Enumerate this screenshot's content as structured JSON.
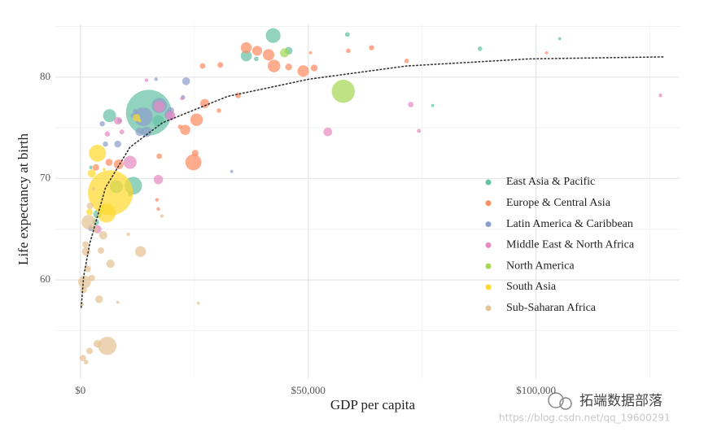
{
  "chart_data": {
    "type": "scatter",
    "x_label": "GDP per capita",
    "y_label": "Life expectancy at birth",
    "xlim": [
      -5500,
      131500
    ],
    "ylim": [
      50.3,
      85.2
    ],
    "xticks": [
      {
        "value": 0,
        "label": "$0"
      },
      {
        "value": 50000,
        "label": "$50,000"
      },
      {
        "value": 100000,
        "label": "$100,000"
      }
    ],
    "xminor": [
      25000,
      75000,
      125000
    ],
    "yticks": [
      60,
      70,
      80
    ],
    "yminor": [
      55,
      65,
      75,
      85
    ],
    "grid": true,
    "legend": "right",
    "series": [
      {
        "name": "East Asia & Pacific",
        "color": "#66c2a5",
        "x": [
          15000,
          11600,
          6400,
          7900,
          42300,
          36400,
          45700,
          58600,
          87700,
          105200,
          77300,
          38600,
          10900,
          3750,
          3400,
          17100,
          2300
        ],
        "values": [
          76.5,
          69.3,
          76.2,
          69.2,
          84.1,
          82.1,
          82.6,
          84.2,
          82.8,
          83.8,
          77.2,
          81.8,
          68.5,
          66.5,
          65.7,
          75.7,
          71.1
        ],
        "sizes": [
          1390,
          180,
          90,
          90,
          120,
          60,
          25,
          6,
          5,
          1,
          1,
          5,
          5,
          30,
          15,
          65,
          2
        ]
      },
      {
        "name": "Europe & Central Asia",
        "color": "#fc8d62",
        "x": [
          24800,
          25500,
          42500,
          41300,
          48900,
          36400,
          38800,
          27300,
          23000,
          8400,
          6300,
          3400,
          63900,
          71600,
          102300,
          26800,
          30700,
          34600,
          45700,
          51300,
          16800,
          17100,
          17300,
          25200,
          30400,
          58800,
          50500,
          21900
        ],
        "values": [
          71.6,
          75.8,
          81.1,
          82.2,
          80.6,
          82.9,
          82.6,
          77.4,
          74.8,
          71.4,
          71.6,
          71.1,
          82.9,
          81.6,
          82.4,
          81.1,
          81.2,
          78.2,
          81.0,
          80.9,
          67.9,
          67.0,
          72.2,
          72.5,
          76.7,
          82.6,
          82.4,
          75.1
        ],
        "sizes": [
          144,
          82,
          82,
          66,
          66,
          60,
          46,
          38,
          50,
          45,
          20,
          15,
          8,
          5,
          1,
          10,
          10,
          10,
          17,
          17,
          2,
          2,
          9,
          17,
          5,
          5,
          1,
          5
        ]
      },
      {
        "name": "Latin America & Caribbean",
        "color": "#8da0cb",
        "x": [
          13800,
          17300,
          14500,
          19500,
          23200,
          8200,
          5500,
          8600,
          13000,
          11600,
          16600,
          33200,
          2300,
          4800,
          12100,
          19800,
          22500
        ],
        "values": [
          76.1,
          77.2,
          74.6,
          76.3,
          79.6,
          73.4,
          73.4,
          75.7,
          74.6,
          76.2,
          79.8,
          70.7,
          65.1,
          75.4,
          76.6,
          76.7,
          78.0
        ],
        "sizes": [
          209,
          129,
          50,
          44,
          25,
          18,
          8,
          8,
          30,
          8,
          2,
          1,
          11,
          8,
          8,
          18,
          5
        ]
      },
      {
        "name": "Middle East & North Africa",
        "color": "#e78ac3",
        "x": [
          10900,
          17100,
          17300,
          19800,
          54300,
          72500,
          74300,
          127300,
          8200,
          5900,
          3750,
          14500,
          9100,
          22300
        ],
        "values": [
          71.6,
          69.9,
          77.1,
          76.2,
          74.6,
          77.3,
          74.7,
          78.2,
          75.7,
          74.4,
          65.0,
          79.7,
          74.6,
          77.9
        ],
        "sizes": [
          90,
          40,
          60,
          40,
          33,
          9,
          3,
          2,
          25,
          8,
          28,
          2,
          6,
          2
        ]
      },
      {
        "name": "North America",
        "color": "#a6d854",
        "x": [
          57700,
          44800
        ],
        "values": [
          78.6,
          82.4
        ],
        "sizes": [
          327,
          37
        ]
      },
      {
        "name": "South Asia",
        "color": "#ffd92f",
        "x": [
          6600,
          3750,
          5700,
          12300,
          2500,
          2000,
          13000,
          5200
        ],
        "values": [
          68.6,
          72.5,
          66.6,
          76.0,
          70.5,
          66.7,
          75.7,
          70.9
        ],
        "sizes": [
          1350,
          165,
          212,
          21,
          28,
          15,
          1,
          1
        ]
      },
      {
        "name": "Sub-Saharan Africa",
        "color": "#e5c494",
        "x": [
          5900,
          1800,
          900,
          13200,
          5000,
          1250,
          6600,
          4100,
          3750,
          2000,
          540,
          1250,
          1100,
          1600,
          700,
          2100,
          3200,
          10500,
          17900,
          25900,
          8200,
          4500,
          2500,
          360,
          2900
        ],
        "values": [
          53.5,
          65.7,
          59.8,
          62.8,
          64.4,
          62.8,
          61.6,
          58.1,
          53.7,
          53.0,
          52.3,
          51.9,
          63.5,
          61.1,
          59.0,
          67.3,
          65.0,
          64.5,
          66.3,
          57.7,
          57.8,
          62.9,
          60.2,
          57.6,
          69.0
        ],
        "sizes": [
          196,
          109,
          84,
          58,
          30,
          30,
          30,
          25,
          25,
          15,
          15,
          5,
          15,
          15,
          15,
          15,
          15,
          2,
          2,
          1,
          1,
          15,
          15,
          2,
          2
        ]
      }
    ],
    "trend": {
      "x": [
        180,
        700,
        2000,
        5500,
        10900,
        18000,
        32300,
        50200,
        71600,
        98400,
        127900
      ],
      "y": [
        57.3,
        60.3,
        63.5,
        69.1,
        73.1,
        75.5,
        78.1,
        79.8,
        81.1,
        81.8,
        82.0
      ]
    },
    "watermark": {
      "name": "拓端数据部落",
      "url": "https://blog.csdn.net/qq_19600291"
    }
  }
}
